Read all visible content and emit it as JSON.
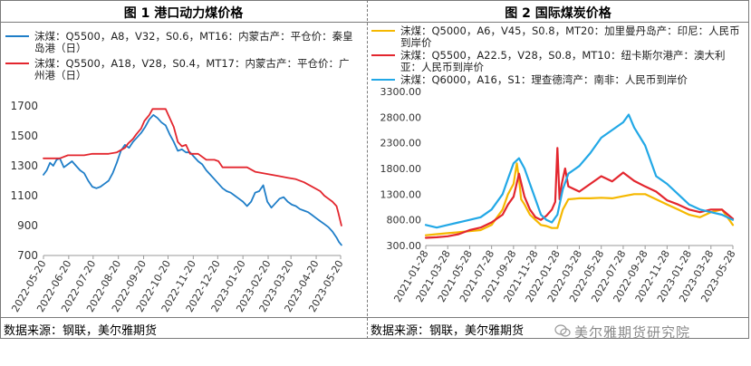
{
  "chart1": {
    "title": "图 1 港口动力煤价格",
    "source": "数据来源：钢联，美尔雅期货",
    "legend": [
      {
        "label": "沫煤：Q5500，A8，V32，S0.6，MT16：内蒙古产：平仓价：秦皇岛港（日）",
        "color": "#1f7ec8"
      },
      {
        "label": "沫煤：Q5500，A18，V28，S0.4，MT17：内蒙古产：平仓价：广州港（日）",
        "color": "#e3262e"
      }
    ]
  },
  "chart2": {
    "title": "图 2 国际煤炭价格",
    "source": "数据来源：钢联，美尔雅期货",
    "legend": [
      {
        "label": "沫煤：Q5000，A6，V45，S0.8，MT20：加里曼丹岛产：印尼：人民币到岸价",
        "color": "#f5b800"
      },
      {
        "label": "沫煤：Q5500，A22.5，V28，S0.8，MT10：纽卡斯尔港产：澳大利亚：人民币到岸价",
        "color": "#e3262e"
      },
      {
        "label": "沫煤：Q6000，A16，S1：理查德湾产：南非：人民币到岸价",
        "color": "#22a8e6"
      }
    ]
  },
  "watermark": "美尔雅期货研究院",
  "chart_data": [
    {
      "type": "line",
      "title": "图 1 港口动力煤价格",
      "ylim": [
        700,
        1700
      ],
      "yticks": [
        700,
        900,
        1100,
        1300,
        1500,
        1700
      ],
      "ytick_labels": [
        "700",
        "900",
        "1100",
        "1300",
        "1500",
        "1700"
      ],
      "xlim": [
        0,
        365
      ],
      "xtick_labels": [
        "2022-05-20",
        "2022-06-20",
        "2022-07-20",
        "2022-08-20",
        "2022-09-20",
        "2022-10-20",
        "2022-11-20",
        "2022-12-20",
        "2023-01-20",
        "2023-02-20",
        "2023-03-20",
        "2023-04-20",
        "2023-05-20"
      ],
      "xtick_pos": [
        0,
        31,
        61,
        92,
        123,
        153,
        184,
        214,
        245,
        276,
        304,
        335,
        365
      ],
      "series": [
        {
          "name": "沫煤：Q5500，A8，V32，S0.6，MT16：内蒙古产：平仓价：秦皇岛港（日）",
          "color": "#1f7ec8",
          "x": [
            0,
            4,
            8,
            12,
            16,
            20,
            25,
            30,
            35,
            40,
            45,
            50,
            55,
            60,
            65,
            70,
            75,
            80,
            85,
            90,
            95,
            100,
            105,
            110,
            115,
            120,
            125,
            130,
            135,
            140,
            145,
            150,
            155,
            160,
            165,
            170,
            175,
            180,
            185,
            190,
            195,
            200,
            205,
            210,
            215,
            220,
            225,
            230,
            235,
            240,
            245,
            250,
            255,
            260,
            265,
            270,
            275,
            280,
            285,
            290,
            295,
            300,
            305,
            310,
            315,
            320,
            325,
            330,
            335,
            340,
            345,
            350,
            355,
            360,
            363,
            366
          ],
          "values": [
            1240,
            1270,
            1320,
            1300,
            1340,
            1350,
            1290,
            1310,
            1330,
            1300,
            1270,
            1250,
            1200,
            1160,
            1150,
            1160,
            1180,
            1200,
            1250,
            1320,
            1400,
            1440,
            1420,
            1460,
            1490,
            1520,
            1560,
            1610,
            1640,
            1620,
            1590,
            1570,
            1510,
            1460,
            1400,
            1410,
            1390,
            1390,
            1360,
            1330,
            1310,
            1270,
            1240,
            1210,
            1180,
            1150,
            1130,
            1120,
            1100,
            1080,
            1060,
            1030,
            1060,
            1120,
            1130,
            1170,
            1060,
            1020,
            1050,
            1080,
            1090,
            1060,
            1040,
            1030,
            1010,
            1000,
            990,
            970,
            950,
            930,
            910,
            890,
            860,
            820,
            790,
            770
          ]
        },
        {
          "name": "沫煤：Q5500，A18，V28，S0.4，MT17：内蒙古产：平仓价：广州港（日）",
          "color": "#e3262e",
          "x": [
            0,
            10,
            20,
            30,
            40,
            50,
            60,
            70,
            80,
            90,
            100,
            104,
            110,
            114,
            120,
            124,
            130,
            134,
            140,
            150,
            160,
            165,
            170,
            175,
            180,
            190,
            200,
            210,
            215,
            220,
            230,
            240,
            250,
            260,
            270,
            280,
            290,
            300,
            310,
            320,
            330,
            340,
            345,
            350,
            355,
            360,
            362,
            366
          ],
          "values": [
            1350,
            1350,
            1350,
            1370,
            1370,
            1370,
            1380,
            1380,
            1380,
            1390,
            1420,
            1450,
            1480,
            1510,
            1550,
            1600,
            1640,
            1680,
            1680,
            1680,
            1560,
            1460,
            1430,
            1440,
            1380,
            1380,
            1340,
            1340,
            1330,
            1290,
            1290,
            1290,
            1290,
            1260,
            1250,
            1240,
            1230,
            1220,
            1210,
            1190,
            1160,
            1130,
            1100,
            1080,
            1060,
            1030,
            990,
            900
          ]
        }
      ]
    },
    {
      "type": "line",
      "title": "图 2 国际煤炭价格",
      "ylim": [
        300,
        3300
      ],
      "yticks": [
        300,
        800,
        1300,
        1800,
        2300,
        2800,
        3300
      ],
      "ytick_labels": [
        "300.00",
        "800.00",
        "1300.00",
        "1800.00",
        "2300.00",
        "2800.00",
        "3300.00"
      ],
      "xlim": [
        0,
        28
      ],
      "xtick_labels": [
        "2021-01-28",
        "2021-03-28",
        "2021-05-28",
        "2021-07-28",
        "2021-09-28",
        "2021-11-28",
        "2022-01-28",
        "2022-03-28",
        "2022-05-28",
        "2022-07-28",
        "2022-09-28",
        "2022-11-28",
        "2023-01-28",
        "2023-03-28",
        "2023-05-28"
      ],
      "xtick_pos": [
        0,
        2,
        4,
        6,
        8,
        10,
        12,
        14,
        16,
        18,
        20,
        22,
        24,
        26,
        28
      ],
      "series": [
        {
          "name": "沫煤：Q5000，A6，V45，S0.8，MT20：加里曼丹岛产：印尼：人民币到岸价",
          "color": "#f5b800",
          "x": [
            0,
            1,
            2,
            3,
            4,
            5,
            6,
            7,
            7.5,
            8,
            8.3,
            8.5,
            8.7,
            9,
            9.5,
            10,
            10.5,
            11,
            11.5,
            12,
            12.5,
            13,
            14,
            15,
            16,
            17,
            18,
            19,
            20,
            21,
            22,
            23,
            24,
            25,
            26,
            27,
            27.5,
            28
          ],
          "values": [
            500,
            520,
            540,
            560,
            580,
            600,
            700,
            1000,
            1300,
            1500,
            1900,
            1600,
            1200,
            1100,
            900,
            800,
            700,
            680,
            640,
            640,
            1000,
            1200,
            1220,
            1220,
            1230,
            1220,
            1260,
            1300,
            1300,
            1200,
            1100,
            1000,
            900,
            850,
            950,
            1000,
            850,
            700
          ]
        },
        {
          "name": "沫煤：Q5500，A22.5，V28，S0.8，MT10：纽卡斯尔港产：澳大利亚：人民币到岸价",
          "color": "#e3262e",
          "x": [
            0,
            1,
            2,
            3,
            4,
            5,
            6,
            7,
            7.5,
            8,
            8.5,
            9,
            9.5,
            10,
            10.5,
            11,
            11.5,
            11.8,
            12,
            12.2,
            12.4,
            12.7,
            13,
            14,
            15,
            16,
            17,
            18,
            19,
            20,
            21,
            22,
            23,
            24,
            25,
            26,
            27,
            28
          ],
          "values": [
            450,
            460,
            480,
            520,
            600,
            650,
            750,
            900,
            1100,
            1250,
            1700,
            1250,
            1000,
            850,
            800,
            880,
            1000,
            1150,
            2200,
            1200,
            1500,
            1800,
            1450,
            1350,
            1500,
            1650,
            1550,
            1720,
            1560,
            1450,
            1350,
            1180,
            1100,
            1000,
            950,
            1000,
            1000,
            820
          ]
        },
        {
          "name": "沫煤：Q6000，A16，S1：理查德湾产：南非：人民币到岸价",
          "color": "#22a8e6",
          "x": [
            0,
            1,
            2,
            3,
            4,
            5,
            6,
            7,
            7.5,
            8,
            8.5,
            9,
            9.5,
            10,
            10.5,
            11,
            11.5,
            12,
            12.5,
            13,
            14,
            15,
            16,
            17,
            18,
            18.5,
            19,
            20,
            21,
            22,
            23,
            24,
            25,
            26,
            27,
            28
          ],
          "values": [
            700,
            650,
            700,
            750,
            800,
            850,
            1000,
            1300,
            1600,
            1900,
            2000,
            1800,
            1500,
            1200,
            900,
            800,
            750,
            900,
            1400,
            1700,
            1850,
            2100,
            2400,
            2550,
            2700,
            2850,
            2600,
            2250,
            1650,
            1500,
            1300,
            1100,
            1000,
            950,
            900,
            800
          ]
        }
      ]
    }
  ]
}
